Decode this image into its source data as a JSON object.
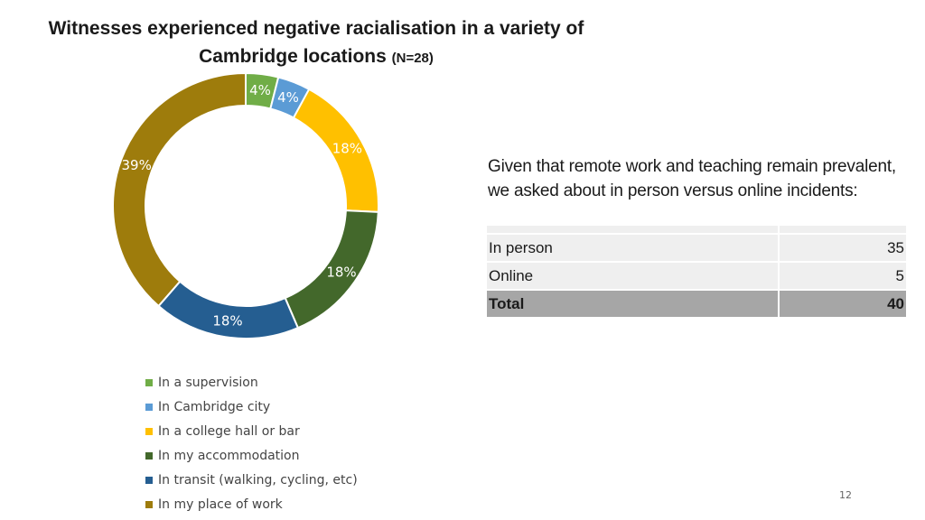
{
  "title": {
    "line1": "Witnesses experienced negative racialisation in a variety of",
    "line2": "Cambridge locations",
    "n_label": "(N=28)"
  },
  "chart_data": {
    "type": "pie",
    "variant": "donut",
    "title": "Witnesses experienced negative racialisation in a variety of Cambridge locations (N=28)",
    "categories": [
      "In a supervision",
      "In Cambridge city",
      "In a college hall or bar",
      "In my accommodation",
      "In transit (walking, cycling, etc)",
      "In my place of work"
    ],
    "values": [
      4,
      4,
      18,
      18,
      18,
      39
    ],
    "labels": [
      "4%",
      "4%",
      "18%",
      "18%",
      "18%",
      "39%"
    ],
    "colors": [
      "#70ad47",
      "#5b9bd5",
      "#ffc000",
      "#43682b",
      "#255e91",
      "#9e7c0c"
    ],
    "unit": "%",
    "legend_position": "bottom"
  },
  "note": {
    "line1": "Given that remote work and teaching remain prevalent,",
    "line2": "we asked about in person versus online incidents:"
  },
  "incident_table": {
    "rows": [
      {
        "label": "In person",
        "value": "35"
      },
      {
        "label": "Online",
        "value": "5"
      }
    ],
    "total": {
      "label": "Total",
      "value": "40"
    }
  },
  "page_number": "12"
}
